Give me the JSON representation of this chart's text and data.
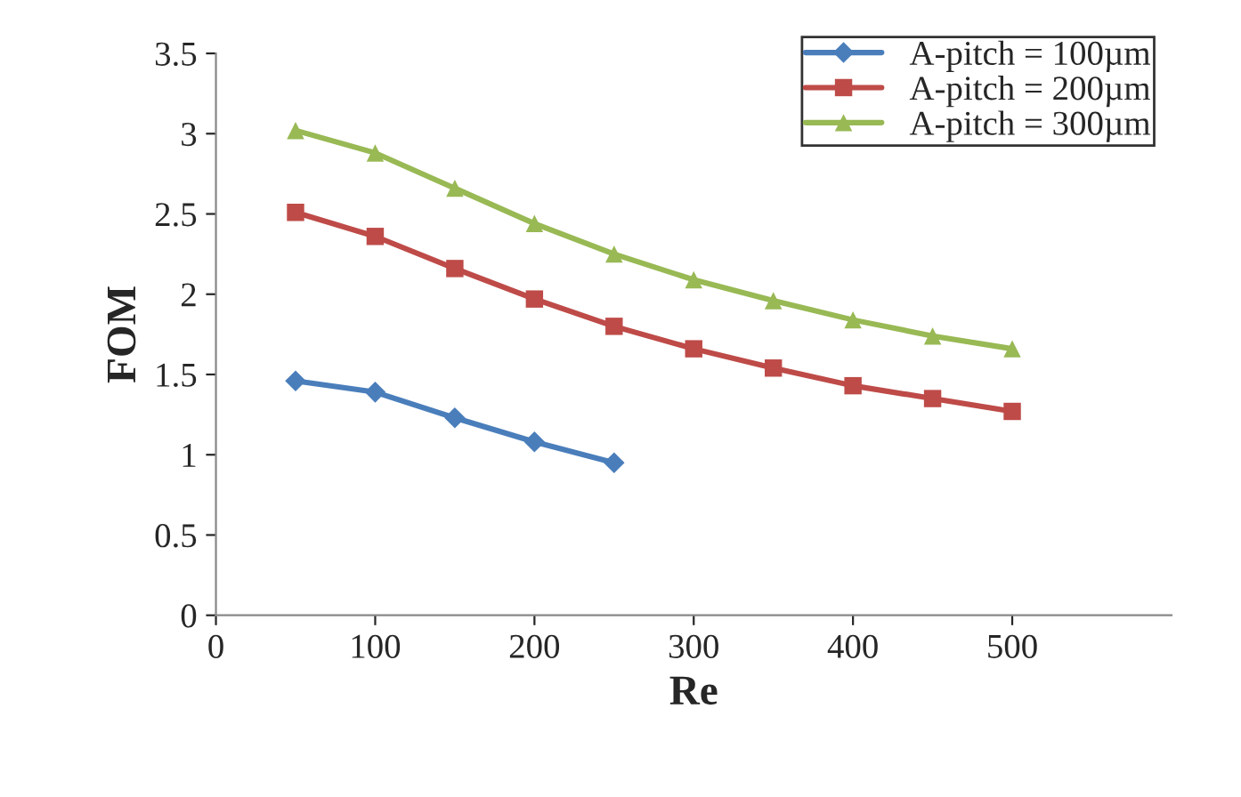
{
  "chart_data": {
    "type": "line",
    "xlabel": "Re",
    "ylabel": "FOM",
    "x": [
      50,
      100,
      150,
      200,
      250,
      300,
      350,
      400,
      450,
      500
    ],
    "series": [
      {
        "name": "A-pitch = 100µm",
        "color": "#4a7ebb",
        "marker": "diamond",
        "values": [
          1.46,
          1.39,
          1.23,
          1.08,
          0.95,
          null,
          null,
          null,
          null,
          null
        ]
      },
      {
        "name": "A-pitch = 200µm",
        "color": "#be4b48",
        "marker": "square",
        "values": [
          2.51,
          2.36,
          2.16,
          1.97,
          1.8,
          1.66,
          1.54,
          1.43,
          1.35,
          1.27
        ]
      },
      {
        "name": "A-pitch = 300µm",
        "color": "#98b954",
        "marker": "triangle",
        "values": [
          3.02,
          2.88,
          2.66,
          2.44,
          2.25,
          2.09,
          1.96,
          1.84,
          1.74,
          1.66
        ]
      }
    ],
    "xlim": [
      0,
      600
    ],
    "xticks": [
      0,
      100,
      200,
      300,
      400,
      500
    ],
    "ylim": [
      0,
      3.5
    ],
    "yticks": [
      0,
      {
        "value": 0.5,
        "label": "0.5"
      },
      1,
      {
        "value": 1.5,
        "label": "1.5"
      },
      2,
      {
        "value": 2.5,
        "label": "2.5"
      },
      3,
      {
        "value": 3.5,
        "label": "3.5"
      }
    ],
    "grid": false,
    "legend": "top right",
    "line_style": "solid"
  }
}
